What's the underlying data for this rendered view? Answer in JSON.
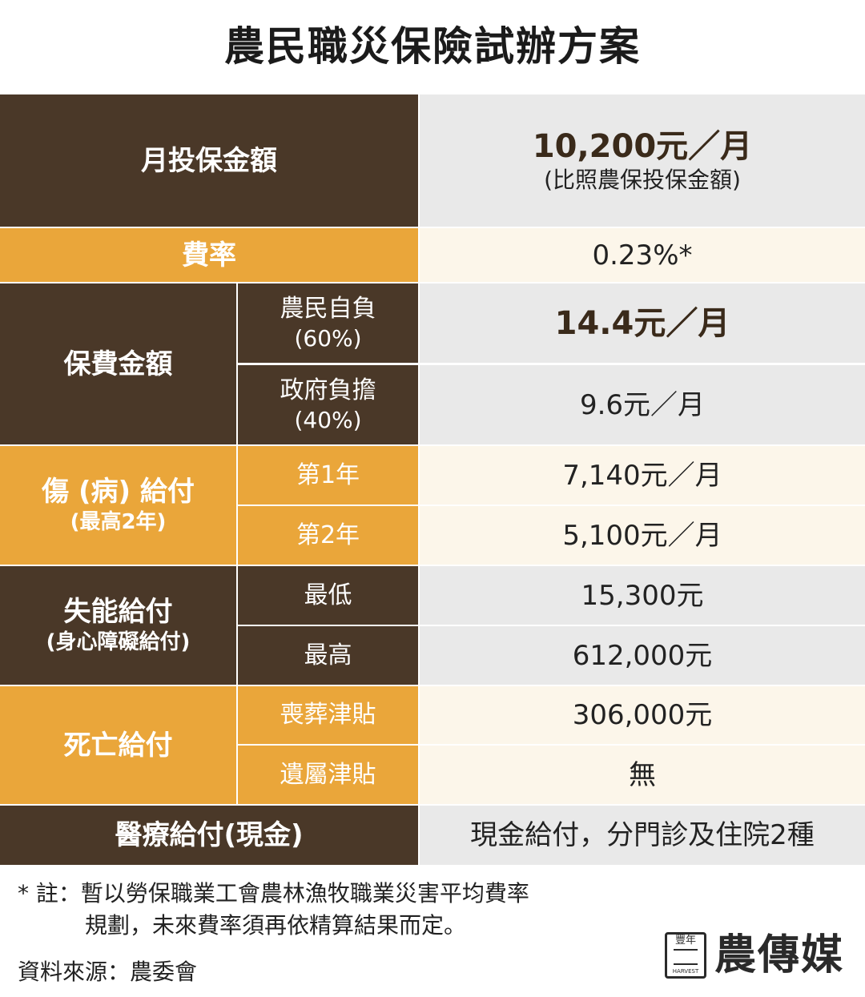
{
  "title": "農民職災保險試辦方案",
  "rows": {
    "insured_amount": {
      "label": "月投保金額",
      "value": "10,200元／月",
      "value_note": "(比照農保投保金額)"
    },
    "rate": {
      "label": "費率",
      "value": "0.23%*"
    },
    "premium": {
      "label": "保費金額",
      "farmer": {
        "label": "農民自負",
        "sub": "(60%)",
        "value": "14.4元／月"
      },
      "government": {
        "label": "政府負擔",
        "sub": "(40%)",
        "value": "9.6元／月"
      }
    },
    "injury": {
      "label": "傷 (病) 給付",
      "sub": "(最高2年)",
      "year1": {
        "label": "第1年",
        "value": "7,140元／月"
      },
      "year2": {
        "label": "第2年",
        "value": "5,100元／月"
      }
    },
    "disability": {
      "label": "失能給付",
      "sub": "(身心障礙給付)",
      "min": {
        "label": "最低",
        "value": "15,300元"
      },
      "max": {
        "label": "最高",
        "value": "612,000元"
      }
    },
    "death": {
      "label": "死亡給付",
      "funeral": {
        "label": "喪葬津貼",
        "value": "306,000元"
      },
      "survivor": {
        "label": "遺屬津貼",
        "value": "無"
      }
    },
    "medical": {
      "label": "醫療給付(現金)",
      "value": "現金給付，分門診及住院2種"
    }
  },
  "notes": {
    "line1": "* 註：暫以勞保職業工會農林漁牧職業災害平均費率",
    "line2": "規劃，未來費率須再依精算結果而定。",
    "source": "資料來源：農委會"
  },
  "logo": {
    "emblem_top": "豐年",
    "emblem_bottom": "HARVEST",
    "brand": "農傳媒"
  },
  "colors": {
    "dark_brown": "#4a3828",
    "orange": "#eaa63a",
    "light_gray": "#e9e9e9",
    "light_cream": "#fcf6ea"
  }
}
